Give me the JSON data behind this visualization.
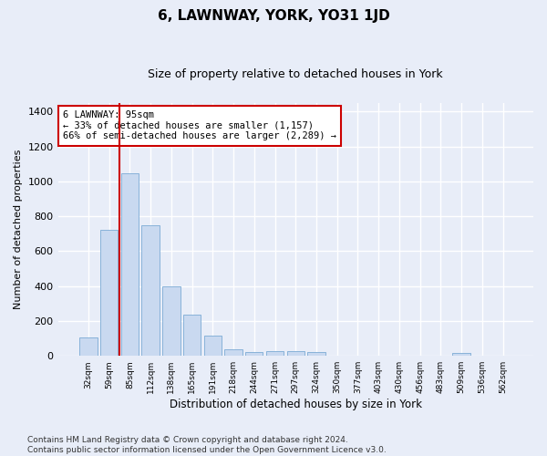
{
  "title": "6, LAWNWAY, YORK, YO31 1JD",
  "subtitle": "Size of property relative to detached houses in York",
  "xlabel": "Distribution of detached houses by size in York",
  "ylabel": "Number of detached properties",
  "bar_color": "#c9d9f0",
  "bar_edge_color": "#7baad4",
  "vline_color": "#cc0000",
  "vline_x": 1.5,
  "annotation_text": "6 LAWNWAY: 95sqm\n← 33% of detached houses are smaller (1,157)\n66% of semi-detached houses are larger (2,289) →",
  "categories": [
    "32sqm",
    "59sqm",
    "85sqm",
    "112sqm",
    "138sqm",
    "165sqm",
    "191sqm",
    "218sqm",
    "244sqm",
    "271sqm",
    "297sqm",
    "324sqm",
    "350sqm",
    "377sqm",
    "403sqm",
    "430sqm",
    "456sqm",
    "483sqm",
    "509sqm",
    "536sqm",
    "562sqm"
  ],
  "values": [
    105,
    720,
    1045,
    750,
    400,
    235,
    115,
    40,
    22,
    25,
    25,
    20,
    0,
    0,
    0,
    0,
    0,
    0,
    18,
    0,
    0
  ],
  "ylim": [
    0,
    1450
  ],
  "yticks": [
    0,
    200,
    400,
    600,
    800,
    1000,
    1200,
    1400
  ],
  "footnote": "Contains HM Land Registry data © Crown copyright and database right 2024.\nContains public sector information licensed under the Open Government Licence v3.0.",
  "background_color": "#e8edf8",
  "plot_background": "#e8edf8",
  "grid_color": "#ffffff",
  "title_fontsize": 11,
  "subtitle_fontsize": 9,
  "annot_fontsize": 7.5,
  "footnote_fontsize": 6.5
}
